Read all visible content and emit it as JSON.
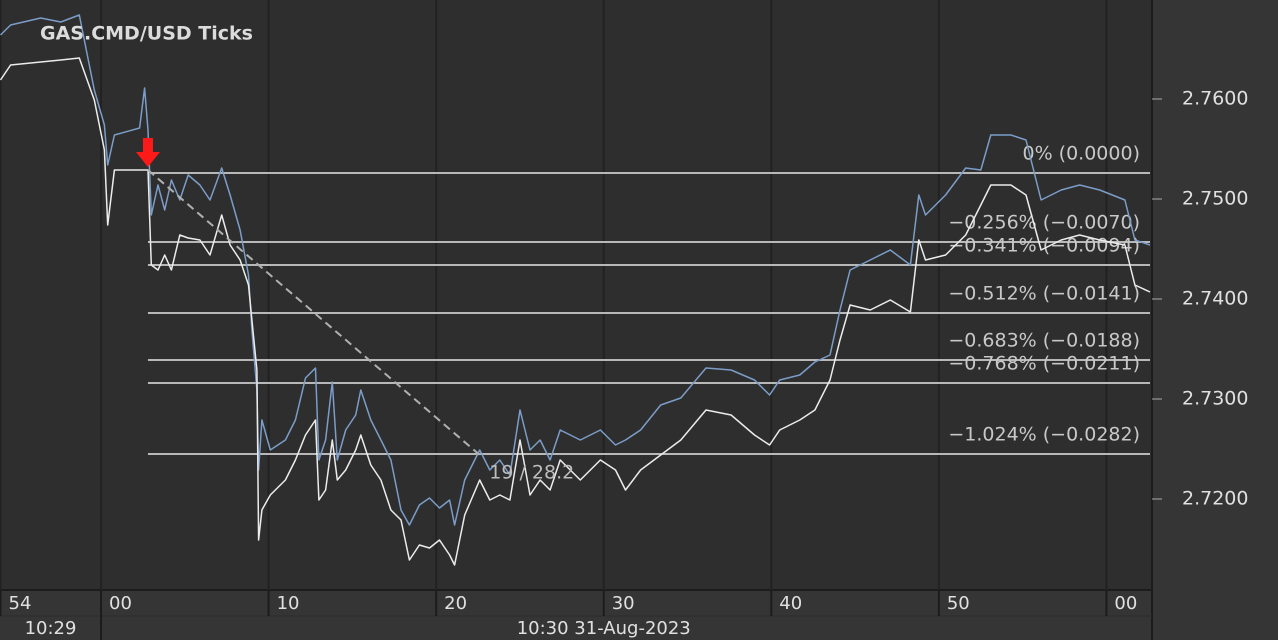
{
  "chart_data": {
    "type": "line",
    "title": "GAS.CMD/USD  Ticks",
    "x": [
      -6.0,
      -5.4,
      -3.6,
      -2.4,
      -1.3,
      -0.4,
      0.2,
      0.4,
      0.8,
      2.3,
      2.6,
      2.8,
      3.0,
      3.4,
      3.8,
      4.2,
      4.7,
      5.2,
      5.9,
      6.5,
      7.2,
      7.7,
      8.3,
      8.8,
      9.0,
      9.3,
      9.4,
      9.6,
      10.1,
      11.0,
      11.6,
      12.2,
      12.8,
      13.0,
      13.4,
      13.8,
      14.1,
      14.6,
      15.2,
      15.5,
      16.1,
      16.7,
      17.3,
      17.9,
      18.4,
      19.0,
      19.6,
      20.2,
      20.8,
      21.1,
      21.7,
      22.6,
      23.2,
      23.8,
      24.4,
      25.0,
      25.6,
      26.2,
      26.8,
      27.4,
      28.6,
      29.8,
      30.7,
      31.3,
      32.2,
      33.4,
      34.6,
      36.1,
      37.6,
      39.0,
      39.9,
      40.5,
      41.7,
      42.6,
      43.5,
      44.1,
      44.7,
      45.9,
      47.1,
      48.3,
      48.8,
      49.2,
      50.4,
      51.6,
      52.5,
      53.1,
      54.3,
      55.2,
      56.1,
      57.3,
      58.4,
      59.6,
      61.1,
      61.7,
      62.6
    ],
    "series": [
      {
        "color": "#7b9dc8",
        "values": [
          2.7664,
          2.7674,
          2.7681,
          2.7677,
          2.7684,
          2.7609,
          2.7574,
          2.7534,
          2.7564,
          2.7571,
          2.7611,
          2.7569,
          2.7484,
          2.7514,
          2.7489,
          2.7519,
          2.7499,
          2.7524,
          2.7514,
          2.7499,
          2.7531,
          2.7504,
          2.7469,
          2.7424,
          2.7369,
          2.7309,
          2.7229,
          2.7279,
          2.7249,
          2.7259,
          2.7279,
          2.7321,
          2.7331,
          2.7239,
          2.7259,
          2.7317,
          2.7239,
          2.7269,
          2.7284,
          2.7309,
          2.7279,
          2.7259,
          2.7239,
          2.7189,
          2.7174,
          2.7194,
          2.7201,
          2.7191,
          2.7199,
          2.7174,
          2.7219,
          2.7249,
          2.7229,
          2.7239,
          2.7224,
          2.7289,
          2.7249,
          2.7259,
          2.7239,
          2.7269,
          2.7259,
          2.7269,
          2.7254,
          2.7259,
          2.7269,
          2.7294,
          2.7301,
          2.7331,
          2.7329,
          2.7319,
          2.7304,
          2.7319,
          2.7324,
          2.7337,
          2.7344,
          2.7389,
          2.7429,
          2.7439,
          2.7449,
          2.7434,
          2.7504,
          2.7484,
          2.7504,
          2.7531,
          2.7529,
          2.7564,
          2.7564,
          2.7559,
          2.7499,
          2.7509,
          2.7514,
          2.7509,
          2.7499,
          2.7459,
          2.7454
        ]
      },
      {
        "color": "#ececec",
        "values": [
          2.7619,
          2.7634,
          2.7637,
          2.7639,
          2.7641,
          2.7599,
          2.7549,
          2.7474,
          2.7529,
          2.7529,
          2.7529,
          2.7529,
          2.7434,
          2.7429,
          2.7444,
          2.7429,
          2.7464,
          2.7461,
          2.7459,
          2.7444,
          2.7484,
          2.7454,
          2.7439,
          2.7414,
          2.7379,
          2.7329,
          2.7159,
          2.7189,
          2.7204,
          2.7219,
          2.7239,
          2.7264,
          2.7279,
          2.7199,
          2.7209,
          2.7259,
          2.7219,
          2.7229,
          2.7249,
          2.7264,
          2.7234,
          2.7219,
          2.7189,
          2.7179,
          2.7139,
          2.7154,
          2.7151,
          2.7159,
          2.7144,
          2.7134,
          2.7184,
          2.7219,
          2.7199,
          2.7204,
          2.7199,
          2.7259,
          2.7204,
          2.7219,
          2.7209,
          2.7239,
          2.7219,
          2.7239,
          2.7229,
          2.7209,
          2.7229,
          2.7244,
          2.7259,
          2.7289,
          2.7284,
          2.7264,
          2.7254,
          2.7269,
          2.7279,
          2.7289,
          2.7319,
          2.7359,
          2.7394,
          2.7389,
          2.7399,
          2.7387,
          2.7459,
          2.7439,
          2.7444,
          2.7464,
          2.7494,
          2.7514,
          2.7514,
          2.7504,
          2.7449,
          2.7459,
          2.7464,
          2.7459,
          2.7454,
          2.7414,
          2.7407
        ]
      }
    ],
    "xlim": [
      -6.03,
      62.6
    ],
    "xticks": [
      {
        "value": -6,
        "label": "54"
      },
      {
        "value": 0,
        "label": "00"
      },
      10,
      20,
      30,
      40,
      50,
      {
        "value": 60,
        "label": "00"
      }
    ],
    "date_labels": [
      "10:29",
      "10:30 31-Aug-2023"
    ],
    "ylim": [
      2.7109,
      2.7699
    ],
    "yticks": [
      {
        "value": 2.72,
        "label": "2.7200"
      },
      {
        "value": 2.73,
        "label": "2.7300"
      },
      {
        "value": 2.74,
        "label": "2.7400"
      },
      {
        "value": 2.75,
        "label": "2.7500"
      },
      {
        "value": 2.76,
        "label": "2.7600"
      }
    ],
    "grid": true,
    "trendline": {
      "x": [
        2.8,
        22.6
      ],
      "values": [
        2.7529,
        2.7244
      ],
      "label": "19 / 28.2"
    },
    "levels": [
      {
        "label": "0% (0.0000)",
        "value": 2.7526
      },
      {
        "label": "−0.256% (−0.0070)",
        "value": 2.7457
      },
      {
        "label": "−0.341% (−0.0094)",
        "value": 2.7434
      },
      {
        "label": "−0.512% (−0.0141)",
        "value": 2.7386
      },
      {
        "label": "−0.683% (−0.0188)",
        "value": 2.7339
      },
      {
        "label": "−0.768% (−0.0211)",
        "value": 2.7316
      },
      {
        "label": "−1.024% (−0.0282)",
        "value": 2.7245
      }
    ]
  }
}
